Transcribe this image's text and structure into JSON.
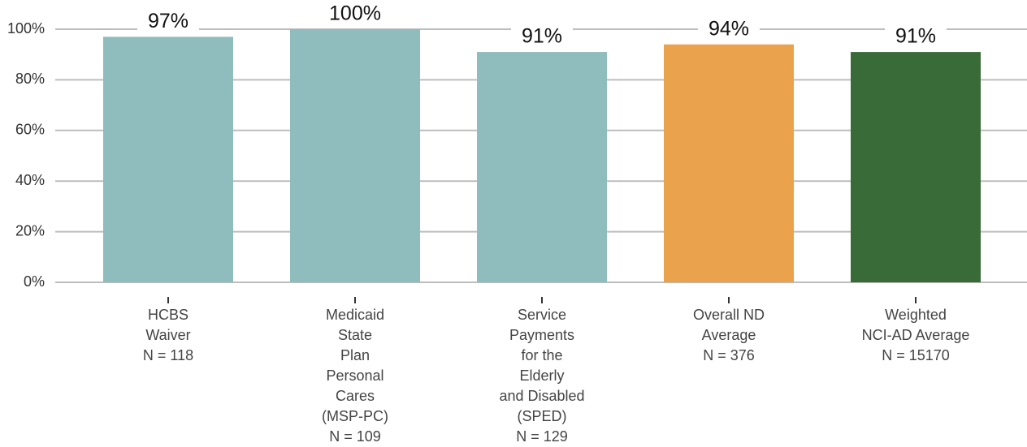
{
  "chart_data": {
    "type": "bar",
    "categories": [
      [
        "HCBS",
        "Waiver",
        "N = 118"
      ],
      [
        "Medicaid",
        "State",
        "Plan",
        "Personal",
        "Cares",
        "(MSP-PC)",
        "N = 109"
      ],
      [
        "Service",
        "Payments",
        "for the",
        "Elderly",
        "and Disabled",
        "(SPED)",
        "N = 129"
      ],
      [
        "Overall ND",
        "Average",
        "N = 376"
      ],
      [
        "Weighted",
        "NCI-AD Average",
        "N = 15170"
      ]
    ],
    "values": [
      97,
      100,
      91,
      94,
      91
    ],
    "value_labels": [
      "97%",
      "100%",
      "91%",
      "94%",
      "91%"
    ],
    "colors": [
      "#8fbcbc",
      "#8fbcbc",
      "#8fbcbc",
      "#eba24c",
      "#386b38"
    ],
    "ylim": [
      0,
      100
    ],
    "yticks": [
      {
        "value": 0,
        "label": "0%"
      },
      {
        "value": 20,
        "label": "20%"
      },
      {
        "value": 40,
        "label": "40%"
      },
      {
        "value": 60,
        "label": "60%"
      },
      {
        "value": 80,
        "label": "80%"
      },
      {
        "value": 100,
        "label": "100%"
      }
    ],
    "grid": true
  }
}
